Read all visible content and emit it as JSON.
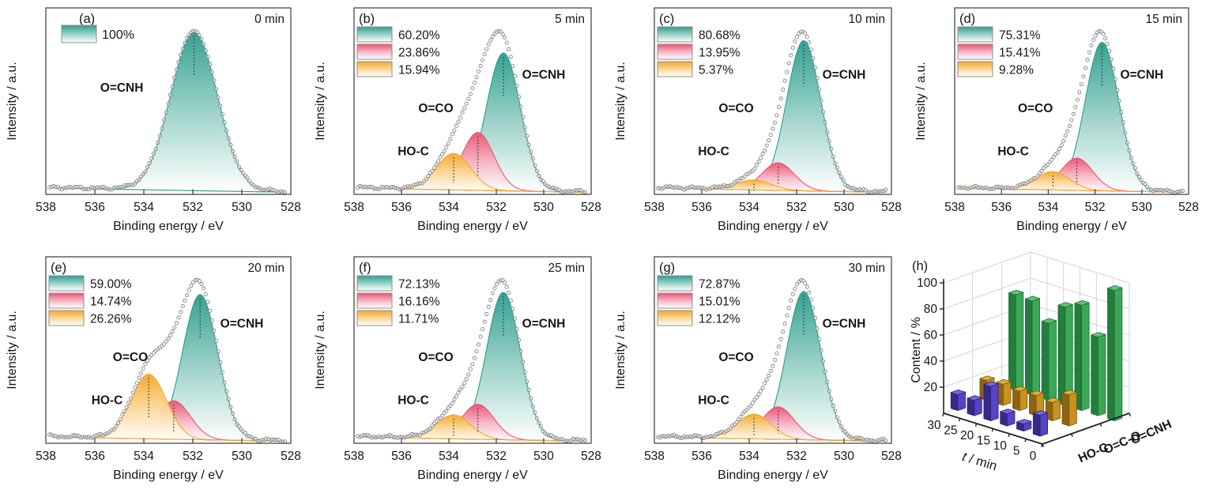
{
  "figure": {
    "description": "XPS O 1s spectra time series (panels a-g) with fitted components and 3D bar summary (panel h)",
    "colors": {
      "teal_peak": "#2E9D8F",
      "teal_label": "#2FA79B",
      "pink_peak": "#EC5372",
      "pink_label": "#F0506F",
      "orange_peak": "#F4A82A",
      "orange_label": "#F5A623",
      "data_circles": "#828282",
      "axis": "#3A3A3A",
      "bar_green": "#3BA857",
      "bar_gold": "#C7921F",
      "bar_purple": "#5743C9"
    }
  },
  "chart_data": [
    {
      "type": "area",
      "subtype": "xps-spectra-deconvolution",
      "xlabel": "Binding energy / eV",
      "ylabel": "Intensity / a.u.",
      "x_ticks": [
        538,
        536,
        534,
        532,
        530,
        528
      ],
      "x_range": [
        538,
        528
      ],
      "grid": false,
      "species_defs": [
        {
          "name": "O=CNH",
          "color": "#2E9D8F",
          "mid": "#9ED3CA",
          "label_color": "#2FA79B",
          "center": 531.7,
          "sigma": 0.72,
          "label_at": {
            "x": 530.0,
            "yf": 0.62
          }
        },
        {
          "name": "O=CO",
          "color": "#EC5372",
          "mid": "#F7B9C7",
          "label_color": "#F0506F",
          "center": 532.78,
          "sigma": 0.68,
          "label_at": {
            "x": 534.55,
            "yf": 0.44
          }
        },
        {
          "name": "HO-C",
          "color": "#F4A82A",
          "mid": "#FBD99C",
          "label_color": "#F5A623",
          "center": 533.8,
          "sigma": 0.72,
          "label_at": {
            "x": 535.5,
            "yf": 0.21
          }
        }
      ],
      "panels": [
        {
          "letter": "(a)",
          "time_label": "0 min",
          "percents": [
            100
          ],
          "percent_labels": [
            "100%"
          ],
          "single_peak": {
            "center": 531.95,
            "sigma": 0.95
          },
          "letter_dx": 42,
          "label_override": {
            "O=CNH": {
              "x": 534.9,
              "yf": 0.55
            }
          }
        },
        {
          "letter": "(b)",
          "time_label": "5 min",
          "percents": [
            60.2,
            23.86,
            15.94
          ],
          "percent_labels": [
            "60.20%",
            "23.86%",
            "15.94%"
          ]
        },
        {
          "letter": "(c)",
          "time_label": "10 min",
          "percents": [
            80.68,
            13.95,
            5.37
          ],
          "percent_labels": [
            "80.68%",
            "13.95%",
            "5.37%"
          ]
        },
        {
          "letter": "(d)",
          "time_label": "15 min",
          "percents": [
            75.31,
            15.41,
            9.28
          ],
          "percent_labels": [
            "75.31%",
            "15.41%",
            "9.28%"
          ]
        },
        {
          "letter": "(e)",
          "time_label": "20 min",
          "percents": [
            59.0,
            14.74,
            26.26
          ],
          "percent_labels": [
            "59.00%",
            "14.74%",
            "26.26%"
          ]
        },
        {
          "letter": "(f)",
          "time_label": "25 min",
          "percents": [
            72.13,
            16.16,
            11.71
          ],
          "percent_labels": [
            "72.13%",
            "16.16%",
            "11.71%"
          ]
        },
        {
          "letter": "(g)",
          "time_label": "30 min",
          "percents": [
            72.87,
            15.01,
            12.12
          ],
          "percent_labels": [
            "72.87%",
            "15.01%",
            "12.12%"
          ]
        }
      ]
    },
    {
      "type": "bar",
      "projection": "3d",
      "panel_letter": "(h)",
      "ylabel": "Content / %",
      "xlabel_parts": [
        "t",
        " / min"
      ],
      "ylim": [
        0,
        100
      ],
      "y_ticks": [
        20,
        40,
        60,
        80,
        100
      ],
      "t_categories": [
        "30",
        "25",
        "20",
        "15",
        "10",
        "5",
        "0"
      ],
      "legend_position": "axis-right",
      "series": [
        {
          "name": "O=CNH",
          "values": [
            72.87,
            72.13,
            59.0,
            75.31,
            80.68,
            60.2,
            100
          ],
          "bright": "#3BA857",
          "dark": "#237E3B",
          "top": "#63C276",
          "outline": "#1C6D33",
          "label_color": "#3BB04F"
        },
        {
          "name": "O=C-O",
          "values": [
            15.01,
            16.16,
            14.74,
            15.41,
            13.95,
            23.86,
            0
          ],
          "bright": "#C7921F",
          "dark": "#8D6511",
          "top": "#DCAF3C",
          "outline": "#7A570E",
          "label_color": "#C99016"
        },
        {
          "name": "HO-C",
          "values": [
            12.12,
            11.71,
            26.26,
            9.28,
            5.37,
            15.94,
            0
          ],
          "bright": "#5743C9",
          "dark": "#39288A",
          "top": "#7A66DB",
          "outline": "#2E2273",
          "label_color": "#5743C9"
        }
      ]
    }
  ]
}
